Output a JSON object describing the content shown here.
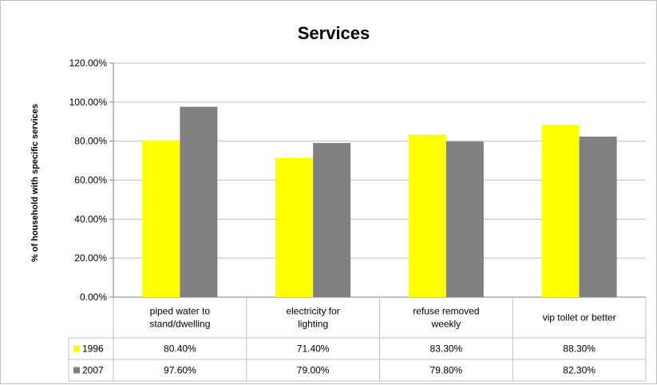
{
  "chart_data": {
    "type": "bar",
    "title": "Services",
    "xlabel": "",
    "ylabel": "% of household with specific services",
    "ylim": [
      0,
      120
    ],
    "yticks": [
      "0.00%",
      "20.00%",
      "40.00%",
      "60.00%",
      "80.00%",
      "100.00%",
      "120.00%"
    ],
    "ytick_values": [
      0,
      20,
      40,
      60,
      80,
      100,
      120
    ],
    "grid": true,
    "legend": "data-table",
    "categories": [
      [
        "piped water to",
        "stand/dwelling"
      ],
      [
        "electricity for",
        "lighting"
      ],
      [
        "refuse removed",
        "weekly"
      ],
      [
        "vip toilet or better"
      ]
    ],
    "series": [
      {
        "name": "1996",
        "color": "#ffff00",
        "values": [
          80.4,
          71.4,
          83.3,
          88.3
        ],
        "labels": [
          "80.40%",
          "71.40%",
          "83.30%",
          "88.30%"
        ]
      },
      {
        "name": "2007",
        "color": "#808080",
        "values": [
          97.6,
          79.0,
          79.8,
          82.3
        ],
        "labels": [
          "97.60%",
          "79.00%",
          "79.80%",
          "82.30%"
        ]
      }
    ]
  }
}
